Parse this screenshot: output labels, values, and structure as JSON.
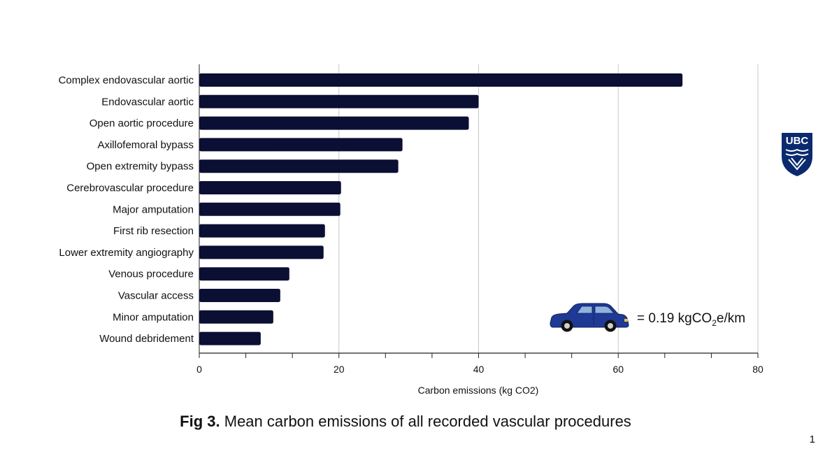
{
  "chart_data": {
    "type": "bar",
    "orientation": "horizontal",
    "categories": [
      "Complex endovascular aortic",
      "Endovascular aortic",
      "Open aortic procedure",
      "Axillofemoral bypass",
      "Open extremity bypass",
      "Cerebrovascular procedure",
      "Major amputation",
      "First rib resection",
      "Lower extremity angiography",
      "Venous procedure",
      "Vascular access",
      "Minor amputation",
      "Wound debridement"
    ],
    "values": [
      69.2,
      40.0,
      38.6,
      29.1,
      28.5,
      20.3,
      20.2,
      18.0,
      17.8,
      12.9,
      11.6,
      10.6,
      8.8
    ],
    "xlabel": "Carbon emissions (kg CO2)",
    "xlim": [
      0,
      80
    ],
    "xticks": [
      "0",
      "20",
      "40",
      "60",
      "80"
    ],
    "grid": true,
    "bar_color": "#0b0f33",
    "annotation": {
      "icon": "car-icon",
      "prefix": "= 0.19 kgCO",
      "subscript": "2",
      "suffix": "e/km"
    }
  },
  "caption": {
    "bold": "Fig 3.",
    "text": " Mean carbon emissions of all recorded vascular procedures"
  },
  "page_number": "1",
  "logo": {
    "text": "UBC",
    "color": "#0b2a6e"
  }
}
